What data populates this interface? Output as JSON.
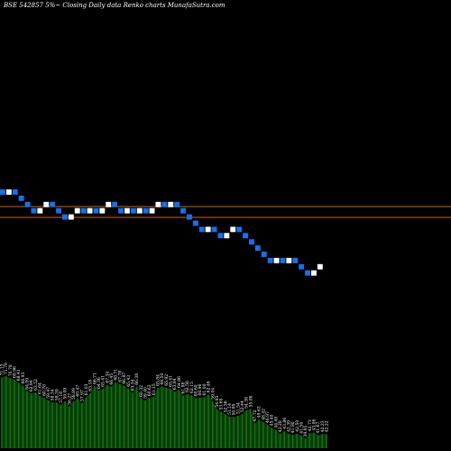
{
  "title": "BSE 542857 5%~  Closing Daily data  Renko  charts MunafaSutra.com",
  "colors": {
    "background": "#000000",
    "up_brick": "#ffffff",
    "down_brick": "#1a6fe8",
    "brick_stroke": "#000000",
    "reference_line": "#c8641e",
    "volume_fill": "#0b3a0b",
    "volume_bar": "#107010"
  },
  "chart_data": [
    {
      "type": "renko",
      "bricks": [
        "down",
        "up",
        "down",
        "down",
        "down",
        "down",
        "up",
        "up",
        "down",
        "down",
        "down",
        "up",
        "up",
        "down",
        "up",
        "down",
        "up",
        "up",
        "down",
        "down",
        "up",
        "down",
        "up",
        "down",
        "up",
        "up",
        "down",
        "up",
        "down",
        "down",
        "down",
        "down",
        "down",
        "up",
        "down",
        "down",
        "up",
        "up",
        "down",
        "down",
        "down",
        "down",
        "down",
        "down",
        "up",
        "down",
        "up",
        "down",
        "down",
        "down",
        "up",
        "up"
      ],
      "reference_lines": 2
    },
    {
      "type": "bar",
      "name": "volume",
      "labels": [
        "71.13",
        "71.78",
        "70.78",
        "69.96",
        "68.41",
        "66.93",
        "64.09",
        "62.94",
        "63.52",
        "61.64",
        "60.78",
        "59.47",
        "58.34",
        "58.39",
        "57.16",
        "59.09",
        "56.27",
        "58.89",
        "60.47",
        "57.97",
        "61.03",
        "63.18",
        "66.71",
        "64.36",
        "65.41",
        "67.34",
        "66.45",
        "68.71",
        "67.78",
        "66.87",
        "65.43",
        "63.34",
        "66.38",
        "60.32",
        "59.40",
        "60.63",
        "61.15",
        "65.84",
        "66.50",
        "65.92",
        "65.41",
        "63.84",
        "64.86",
        "61.88",
        "62.56",
        "62.15",
        "60.60",
        "60.96",
        "61.00",
        "62.46",
        "59.04",
        "54.95",
        "53.65",
        "52.36",
        "51.14",
        "50.89",
        "51.54",
        "52.44",
        "54.38",
        "55.06",
        "47.72",
        "49.63",
        "48.42",
        "46.97",
        "45.40",
        "44.40",
        "42.28",
        "43.86",
        "42.39",
        "41.80",
        "42.50",
        "41.54",
        "39.85",
        "42.73",
        "43.06",
        "41.67",
        "42.23",
        "42.22"
      ]
    }
  ]
}
